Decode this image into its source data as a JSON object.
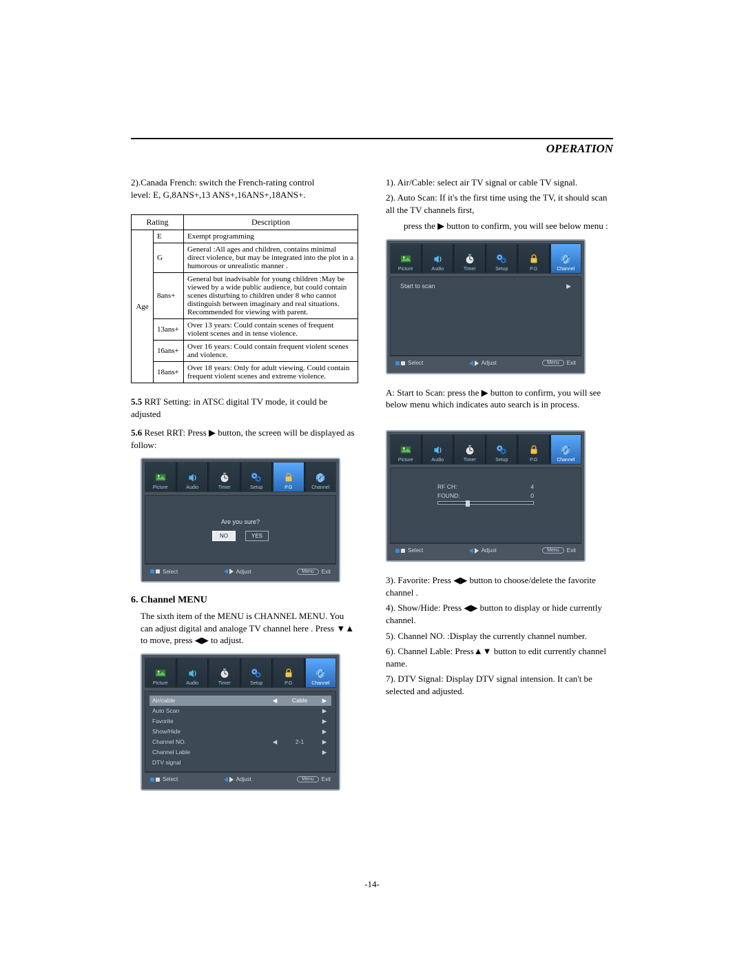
{
  "header": {
    "title": "OPERATION"
  },
  "left": {
    "canada_fr": "2).Canada French: switch the French-rating control\nlevel: E, G,8ANS+,13 ANS+,16ANS+,18ANS+.",
    "table_headers": {
      "rating": "Rating",
      "desc": "Description",
      "age": "Age"
    },
    "ratings": [
      {
        "code": "E",
        "desc": "Exempt programming"
      },
      {
        "code": "G",
        "desc": "General :All ages and children, contains minimal direct violence, but may be integrated into the plot in a humorous or unrealistic manner ."
      },
      {
        "code": "8ans+",
        "desc": "General but inadvisable for young children :May be viewed by a wide public audience, but could contain scenes disturbing to children under 8 who cannot distinguish between imaginary and real situations. Recommended for viewing with parent."
      },
      {
        "code": "13ans+",
        "desc": "Over 13 years: Could contain scenes of frequent violent scenes and in tense violence."
      },
      {
        "code": "16ans+",
        "desc": "Over 16 years: Could contain frequent violent scenes and violence."
      },
      {
        "code": "18ans+",
        "desc": "Over 18 years: Only for adult viewing. Could contain frequent violent scenes and extreme violence."
      }
    ],
    "rrt_setting_a": "5.5",
    "rrt_setting_b": " RRT Setting: in ATSC digital TV mode, it could be adjusted",
    "reset_a": "5.6",
    "reset_b": " Reset RRT: Press  ▶  button, the screen will be displayed as follow:",
    "channel_head": "6. Channel  MENU",
    "channel_body": "The sixth item of the MENU is CHANNEL MENU. You can adjust digital and analoge TV channel here . Press ▼▲  to move, press ◀▶  to adjust."
  },
  "right": {
    "r1": "1). Air/Cable: select air  TV signal or  cable  TV signal.",
    "r2": "2). Auto Scan: If it's the first time  using the TV, it should scan all the TV channels first,",
    "r2b": "press the ▶ button  to confirm,  you will see below menu :",
    "a_text": "A: Start to Scan: press the ▶  button  to confirm,  you will see below menu which indicates auto search is in process.",
    "r3": "3). Favorite: Press ◀▶ button to choose/delete the favorite channel .",
    "r4": "4). Show/Hide: Press ◀▶ button to display  or hide currently channel.",
    "r5": "5). Channel NO.  :Display  the currently channel number.",
    "r6": "6). Channel Lable: Press▲▼ button to edit currently channel name.",
    "r7": "7). DTV Signal: Display DTV signal intension. It can't be selected and adjusted."
  },
  "tabs": [
    "Picture",
    "Audio",
    "Timer",
    "Setup",
    "P.G",
    "Channel"
  ],
  "colors": {
    "tab_picture": "#58c85e",
    "tab_audio": "#4fb8f0",
    "tab_timer": "#e0e0e0",
    "tab_setup": "#5aa9ff",
    "tab_pg": "#f0c54a",
    "tab_channel": "#6ab0e8"
  },
  "tv_reset": {
    "prompt": "Are you sure?",
    "no": "NO",
    "yes": "YES",
    "sel_tab": 4
  },
  "tv_channel": {
    "rows": [
      {
        "label": "Air/cable",
        "val": "Cable",
        "la": "◀",
        "ra": "▶",
        "sel": true
      },
      {
        "label": "Auto Scan",
        "val": "",
        "la": "",
        "ra": "▶"
      },
      {
        "label": "Favorite",
        "val": "",
        "la": "",
        "ra": "▶"
      },
      {
        "label": "Show/Hide",
        "val": "",
        "la": "",
        "ra": "▶"
      },
      {
        "label": "Channel NO.",
        "val": "2-1",
        "la": "◀",
        "ra": "▶"
      },
      {
        "label": "Channel Lable",
        "val": "",
        "la": "",
        "ra": "▶"
      },
      {
        "label": "DTV signal",
        "val": "",
        "la": "",
        "ra": ""
      }
    ],
    "sel_tab": 5
  },
  "tv_start": {
    "label": "Start to scan",
    "arrow": "▶",
    "sel_tab": 5
  },
  "tv_scan": {
    "rf": "RF  CH:",
    "rf_v": "4",
    "found": "FOUND:",
    "found_v": "0",
    "sel_tab": 5
  },
  "foot": {
    "select": "Select",
    "adjust": "Adjust",
    "menu": "Menu",
    "exit": "Exit"
  },
  "page_num": "-14-"
}
